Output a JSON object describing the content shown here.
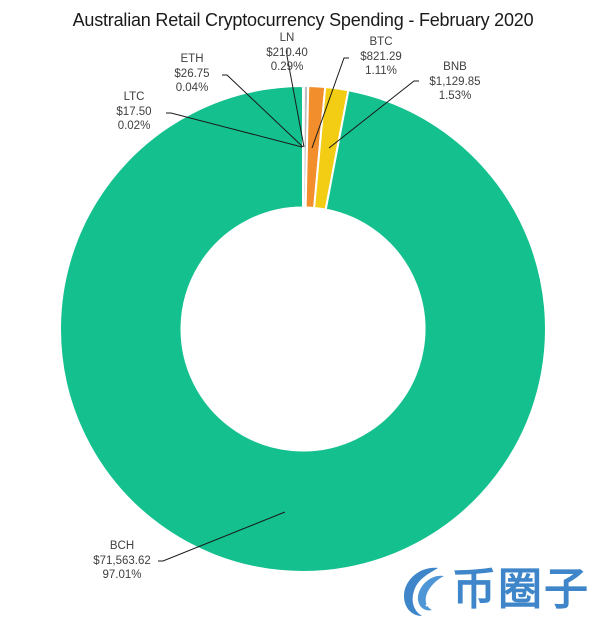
{
  "chart_data": {
    "type": "pie",
    "subtype": "donut",
    "title": "Australian Retail Cryptocurrency Spending - February 2020",
    "categories": [
      "LTC",
      "ETH",
      "LN",
      "BTC",
      "BNB",
      "BCH"
    ],
    "values": [
      17.5,
      26.75,
      210.4,
      821.29,
      1129.85,
      71563.62
    ],
    "percentages": [
      0.02,
      0.04,
      0.29,
      1.11,
      1.53,
      97.01
    ],
    "value_labels": [
      "$17.50",
      "$26.75",
      "$210.40",
      "$821.29",
      "$1,129.85",
      "$71,563.62"
    ],
    "percent_labels": [
      "0.02%",
      "0.04%",
      "0.29%",
      "1.11%",
      "1.53%",
      "97.01%"
    ],
    "colors": [
      "#a5a5a5",
      "#5b9bd5",
      "#bfbfbf",
      "#f28e2b",
      "#f2cd13",
      "#14c08e"
    ],
    "start_angle_deg": 0,
    "direction": "clockwise",
    "hole_ratio": 0.5,
    "legend": "none",
    "data_labels": "outside with leader lines"
  },
  "labels": [
    {
      "name": "LTC",
      "value": "$17.50",
      "pct": "0.02%"
    },
    {
      "name": "ETH",
      "value": "$26.75",
      "pct": "0.04%"
    },
    {
      "name": "LN",
      "value": "$210.40",
      "pct": "0.29%"
    },
    {
      "name": "BTC",
      "value": "$821.29",
      "pct": "1.11%"
    },
    {
      "name": "BNB",
      "value": "$1,129.85",
      "pct": "1.53%"
    },
    {
      "name": "BCH",
      "value": "$71,563.62",
      "pct": "97.01%"
    }
  ],
  "watermark": {
    "text": "币圈子",
    "color": "#3e86c9"
  }
}
